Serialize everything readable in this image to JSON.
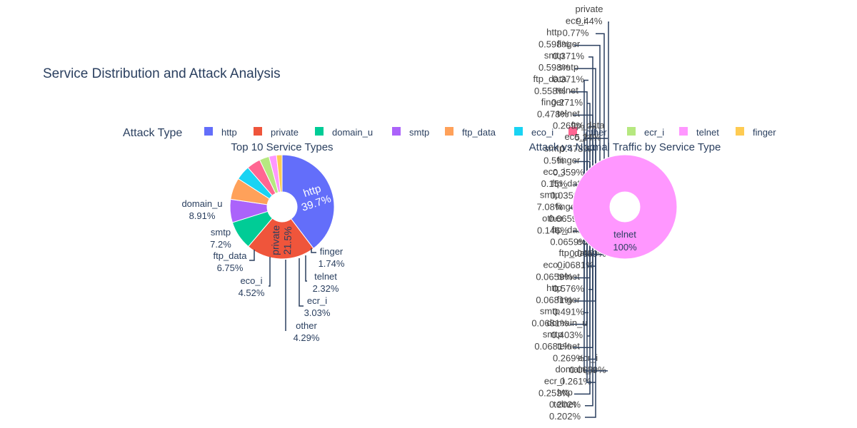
{
  "title": "Service Distribution and Attack Analysis",
  "legend": {
    "title": "Attack Type",
    "placement": "top",
    "items": [
      {
        "label": "http",
        "color": "#636efa"
      },
      {
        "label": "private",
        "color": "#ef553b"
      },
      {
        "label": "domain_u",
        "color": "#00cc96"
      },
      {
        "label": "smtp",
        "color": "#ab63fa"
      },
      {
        "label": "ftp_data",
        "color": "#ffa15a"
      },
      {
        "label": "eco_i",
        "color": "#19d3f3"
      },
      {
        "label": "other",
        "color": "#ff6692"
      },
      {
        "label": "ecr_i",
        "color": "#b6e880"
      },
      {
        "label": "telnet",
        "color": "#ff97ff"
      },
      {
        "label": "finger",
        "color": "#fecb52"
      }
    ]
  },
  "chart_data": [
    {
      "type": "pie",
      "hole": true,
      "title": "Top 10 Service Types",
      "slices": [
        {
          "label": "http",
          "value": 39.7,
          "text": "39.7%",
          "color": "#636efa"
        },
        {
          "label": "private",
          "value": 21.5,
          "text": "21.5%",
          "color": "#ef553b"
        },
        {
          "label": "domain_u",
          "value": 8.91,
          "text": "8.91%",
          "color": "#00cc96"
        },
        {
          "label": "smtp",
          "value": 7.2,
          "text": "7.2%",
          "color": "#ab63fa"
        },
        {
          "label": "ftp_data",
          "value": 6.75,
          "text": "6.75%",
          "color": "#ffa15a"
        },
        {
          "label": "eco_i",
          "value": 4.52,
          "text": "4.52%",
          "color": "#19d3f3"
        },
        {
          "label": "other",
          "value": 4.29,
          "text": "4.29%",
          "color": "#ff6692"
        },
        {
          "label": "ecr_i",
          "value": 3.03,
          "text": "3.03%",
          "color": "#b6e880"
        },
        {
          "label": "telnet",
          "value": 2.32,
          "text": "2.32%",
          "color": "#ff97ff"
        },
        {
          "label": "finger",
          "value": 1.74,
          "text": "1.74%",
          "color": "#fecb52"
        }
      ]
    },
    {
      "type": "pie",
      "hole": true,
      "title": "Attack vs Normal Traffic by Service Type",
      "slices": [
        {
          "label": "telnet",
          "value": 100,
          "text": "100%",
          "color": "#ff97ff"
        }
      ],
      "overlapping_outside_labels": [
        {
          "label": "private",
          "text": "9.44%"
        },
        {
          "label": "ecr_i",
          "text": "0.77%"
        },
        {
          "label": "http",
          "text": "0.598%"
        },
        {
          "label": "finger",
          "text": "0.371%"
        },
        {
          "label": "smtp",
          "text": "0.598%"
        },
        {
          "label": "smtp",
          "text": "0.371%"
        },
        {
          "label": "ftp_data",
          "text": "0.558%"
        },
        {
          "label": "telnet",
          "text": "0.271%"
        },
        {
          "label": "finger",
          "text": "0.478%"
        },
        {
          "label": "telnet",
          "text": "0.269%"
        },
        {
          "label": "ftp_data",
          "text": "5.24%"
        },
        {
          "label": "eco_i",
          "text": "0.478%"
        },
        {
          "label": "smtp",
          "text": "0.5%"
        },
        {
          "label": "finger",
          "text": "0.359%"
        },
        {
          "label": "eco_i",
          "text": "0.15%"
        },
        {
          "label": "ftp_data",
          "text": "0.0359%"
        },
        {
          "label": "smtp",
          "text": "7.08%"
        },
        {
          "label": "finger",
          "text": "0.0659%"
        },
        {
          "label": "other",
          "text": "0.146%"
        },
        {
          "label": "ftp_data",
          "text": "0.0659%"
        },
        {
          "label": "eco_i",
          "text": "0.0659%"
        },
        {
          "label": "ftp_data",
          "text": "0.0681%"
        },
        {
          "label": "eco_i",
          "text": "0.0659%"
        },
        {
          "label": "telnet",
          "text": "0.576%"
        },
        {
          "label": "http",
          "text": "0.0681%"
        },
        {
          "label": "finger",
          "text": "0.491%"
        },
        {
          "label": "smtp",
          "text": "0.0681%"
        },
        {
          "label": "domain_u",
          "text": "0.403%"
        },
        {
          "label": "smtp",
          "text": "0.0681%"
        },
        {
          "label": "telnet",
          "text": "0.269%"
        },
        {
          "label": "ecr_i",
          "text": "0.0659%"
        },
        {
          "label": "domain_u",
          "text": "0.261%"
        },
        {
          "label": "ecr_i",
          "text": "0.253%"
        },
        {
          "label": "http",
          "text": "0.202%"
        },
        {
          "label": "telnet",
          "text": "0.202%"
        }
      ]
    }
  ]
}
